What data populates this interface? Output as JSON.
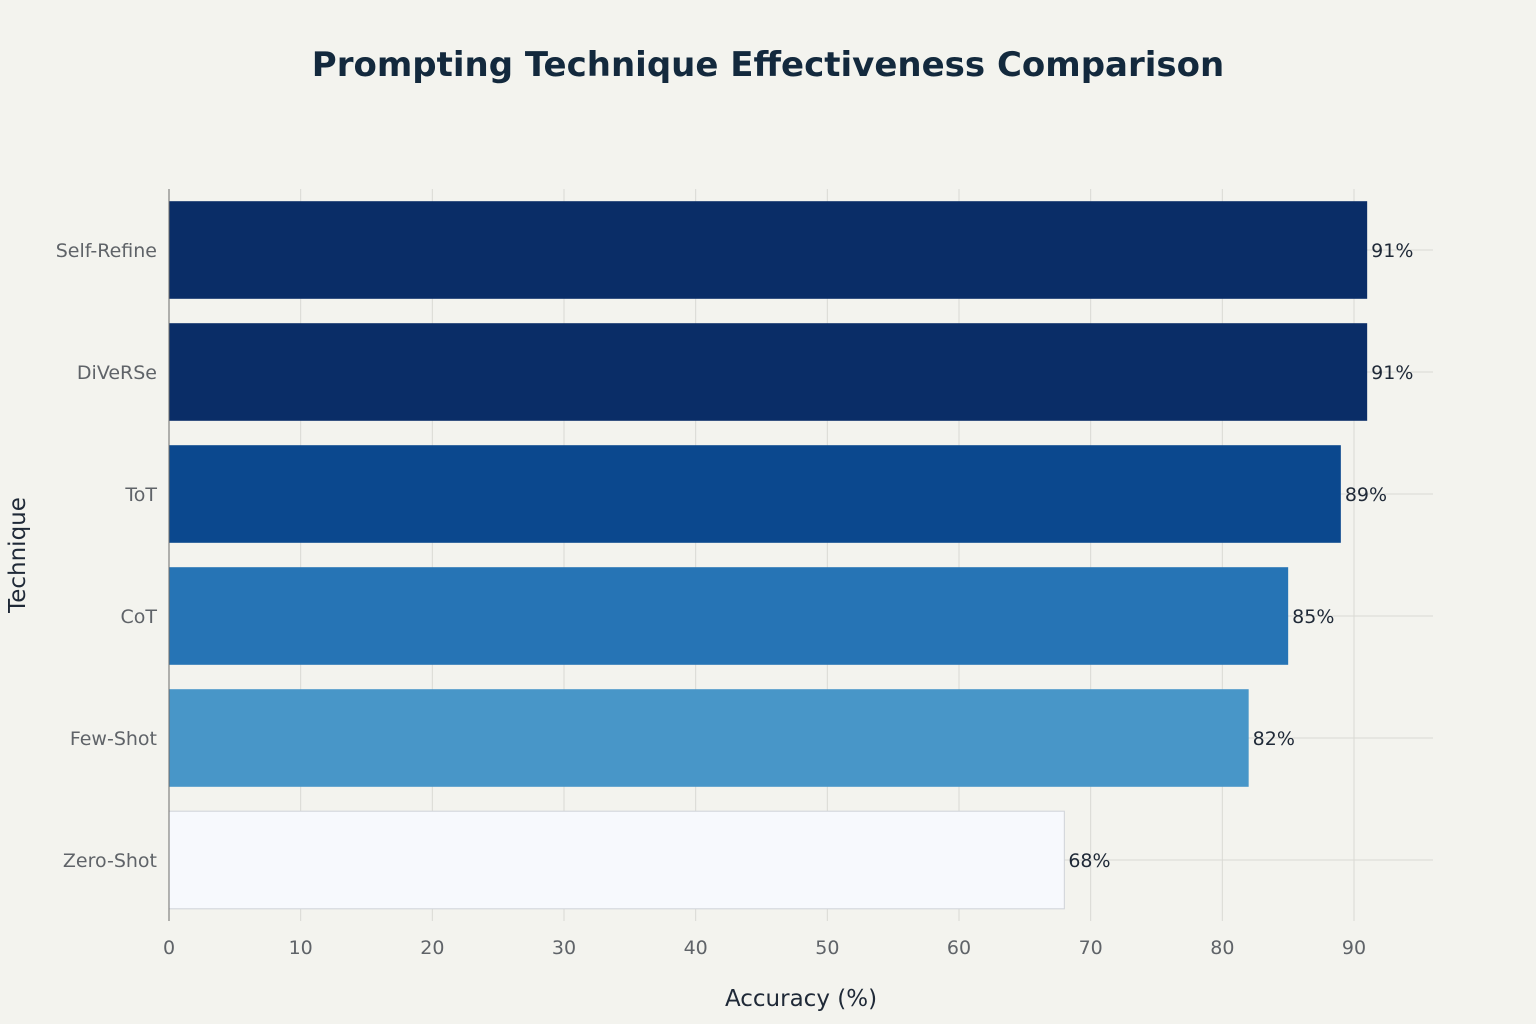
{
  "chart_data": {
    "type": "bar",
    "orientation": "horizontal",
    "title": "Prompting Technique Effectiveness Comparison",
    "xlabel": "Accuracy (%)",
    "ylabel": "Technique",
    "categories": [
      "Self-Refine",
      "DiVeRSe",
      "ToT",
      "CoT",
      "Few-Shot",
      "Zero-Shot"
    ],
    "values": [
      91,
      91,
      89,
      85,
      82,
      68
    ],
    "data_labels": [
      "91%",
      "91%",
      "89%",
      "85%",
      "82%",
      "68%"
    ],
    "bar_colors": [
      "#0a2d67",
      "#0a2d67",
      "#0b488e",
      "#2674b5",
      "#4896c8",
      "#f7f9fd"
    ],
    "xlim": [
      0,
      96
    ],
    "xticks": [
      0,
      10,
      20,
      30,
      40,
      50,
      60,
      70,
      80,
      90
    ],
    "grid": true,
    "legend": "none"
  },
  "colors": {
    "background": "#f3f3ee",
    "grid": "#d9d9d4",
    "title": "#13293d"
  }
}
